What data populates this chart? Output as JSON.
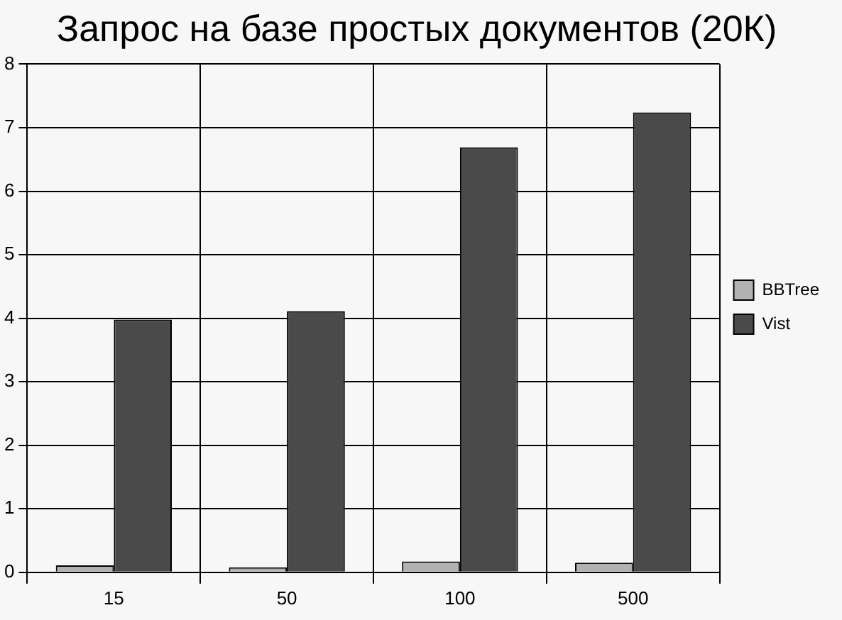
{
  "chart_data": {
    "type": "bar",
    "title": "Запрос на базе простых документов (20К)",
    "categories": [
      "15",
      "50",
      "100",
      "500"
    ],
    "series": [
      {
        "name": "BBTree",
        "color": "#b2b2b2",
        "values": [
          0.11,
          0.08,
          0.17,
          0.15
        ]
      },
      {
        "name": "Vist",
        "color": "#4a4a4a",
        "values": [
          3.98,
          4.11,
          6.69,
          7.24
        ]
      }
    ],
    "ylim": [
      0,
      8
    ],
    "yticks": [
      0,
      1,
      2,
      3,
      4,
      5,
      6,
      7,
      8
    ],
    "grid": true,
    "legend": "right"
  }
}
